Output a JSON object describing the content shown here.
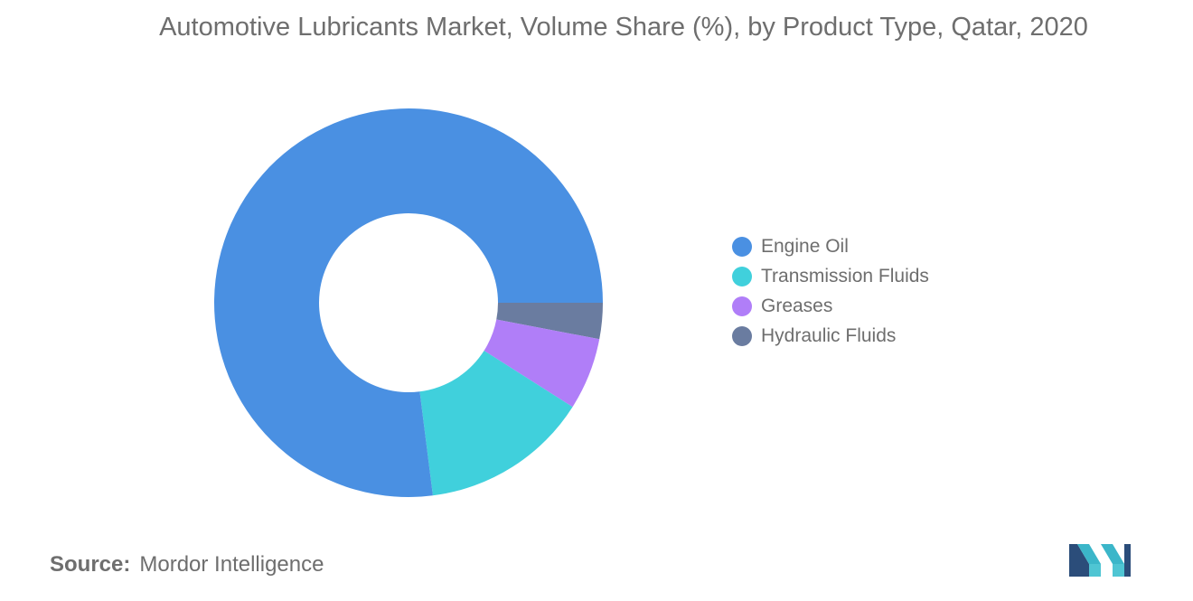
{
  "title": "Automotive Lubricants Market, Volume Share (%), by Product Type, Qatar, 2020",
  "source": {
    "label": "Source:",
    "text": "Mordor Intelligence"
  },
  "colors": {
    "engine_oil": "#4a90e2",
    "transmission_fluids": "#40d0dc",
    "greases": "#b07ef8",
    "hydraulic_fluids": "#6a7ca0"
  },
  "logo_icon": "mordor-intelligence-logo-icon",
  "chart_data": {
    "type": "pie",
    "variant": "donut",
    "title": "Automotive Lubricants Market, Volume Share (%), by Product Type, Qatar, 2020",
    "categories": [
      "Engine Oil",
      "Transmission Fluids",
      "Greases",
      "Hydraulic Fluids"
    ],
    "values": [
      77,
      14,
      6,
      3
    ],
    "colors": [
      "#4a90e2",
      "#40d0dc",
      "#b07ef8",
      "#6a7ca0"
    ],
    "legend_position": "right"
  }
}
